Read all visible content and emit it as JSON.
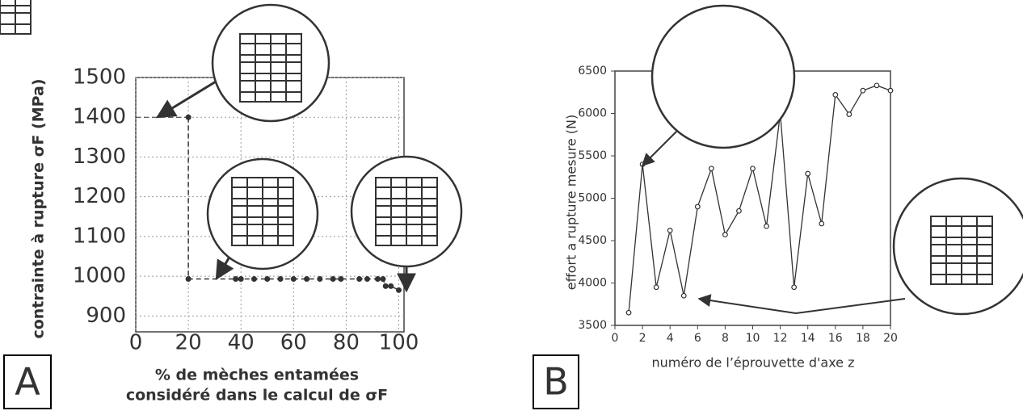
{
  "chart_data": [
    {
      "type": "scatter",
      "panel_label": "A",
      "y_label": "contrainte à rupture σF (MPa)",
      "x_label": [
        "% de mèches entamées",
        "considéré dans le calcul de σF"
      ],
      "x": [
        20,
        20,
        38,
        40,
        45,
        50,
        55,
        60,
        65,
        70,
        75,
        78,
        85,
        88,
        92,
        94,
        95,
        97,
        100
      ],
      "values": [
        1400,
        993,
        993,
        993,
        993,
        993,
        993,
        993,
        993,
        993,
        993,
        993,
        993,
        993,
        993,
        993,
        975,
        975,
        965
      ],
      "color": "#333333",
      "xlim": [
        0,
        102
      ],
      "ylim": [
        860,
        1500
      ],
      "xticks": [
        0,
        20,
        40,
        60,
        80,
        100
      ],
      "yticks": [
        900,
        1000,
        1100,
        1200,
        1300,
        1400,
        1500
      ],
      "grid": true
    },
    {
      "type": "line",
      "panel_label": "B",
      "y_label": "effort a rupture mesure (N)",
      "x_label": [
        "numéro de l’éprouvette d'axe z"
      ],
      "x": [
        1,
        2,
        3,
        4,
        5,
        6,
        7,
        8,
        9,
        10,
        11,
        12,
        13,
        14,
        15,
        16,
        17,
        18,
        19,
        20
      ],
      "values": [
        3650,
        5400,
        3950,
        4620,
        3850,
        4900,
        5350,
        4570,
        4850,
        5350,
        4670,
        6000,
        3950,
        5290,
        4700,
        6220,
        5990,
        6270,
        6330,
        6270
      ],
      "color": "#333333",
      "xlim": [
        0,
        20
      ],
      "ylim": [
        3500,
        6500
      ],
      "xticks": [
        0,
        2,
        4,
        6,
        8,
        10,
        12,
        14,
        16,
        18,
        20
      ],
      "yticks": [
        3500,
        4000,
        4500,
        5000,
        5500,
        6000,
        6500
      ],
      "grid": false
    }
  ]
}
